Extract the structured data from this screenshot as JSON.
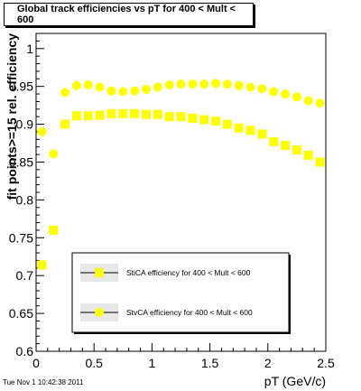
{
  "chart_data": {
    "type": "scatter",
    "title": "Global track efficiencies vs pT for 400 < Mult < 600",
    "xlabel": "pT (GeV/c)",
    "ylabel": "fit points>=15 rel. efficiency",
    "xlim": [
      0,
      2.5
    ],
    "ylim": [
      0.6,
      1.02
    ],
    "x_ticks": [
      "0",
      "0.5",
      "1",
      "1.5",
      "2",
      "2.5"
    ],
    "y_ticks": [
      "0.6",
      "0.65",
      "0.7",
      "0.75",
      "0.8",
      "0.85",
      "0.9",
      "0.95",
      "1"
    ],
    "grid": false,
    "legend_position": "bottom-center",
    "series": [
      {
        "name": "StiCA efficiency  for 400 < Mult < 600",
        "marker": "square",
        "color": "#ffff00",
        "x": [
          0.05,
          0.15,
          0.25,
          0.35,
          0.45,
          0.55,
          0.65,
          0.75,
          0.85,
          0.95,
          1.05,
          1.15,
          1.25,
          1.35,
          1.45,
          1.55,
          1.65,
          1.75,
          1.85,
          1.95,
          2.05,
          2.15,
          2.25,
          2.35,
          2.45
        ],
        "y": [
          0.714,
          0.76,
          0.9,
          0.911,
          0.911,
          0.912,
          0.914,
          0.914,
          0.914,
          0.913,
          0.913,
          0.91,
          0.91,
          0.908,
          0.906,
          0.904,
          0.9,
          0.895,
          0.892,
          0.887,
          0.877,
          0.872,
          0.866,
          0.859,
          0.85
        ]
      },
      {
        "name": "StvCA efficiency  for 400 < Mult < 600",
        "marker": "circle",
        "color": "#ffff00",
        "x": [
          0.05,
          0.15,
          0.25,
          0.35,
          0.45,
          0.55,
          0.65,
          0.75,
          0.85,
          0.95,
          1.05,
          1.15,
          1.25,
          1.35,
          1.45,
          1.55,
          1.65,
          1.75,
          1.85,
          1.95,
          2.05,
          2.15,
          2.25,
          2.35,
          2.45
        ],
        "y": [
          0.89,
          0.861,
          0.942,
          0.951,
          0.952,
          0.949,
          0.944,
          0.943,
          0.944,
          0.946,
          0.949,
          0.952,
          0.953,
          0.953,
          0.953,
          0.954,
          0.953,
          0.951,
          0.949,
          0.947,
          0.943,
          0.94,
          0.936,
          0.931,
          0.928
        ]
      }
    ]
  },
  "footer": {
    "timestamp": "Tue Nov  1 10:42:38 2011"
  }
}
